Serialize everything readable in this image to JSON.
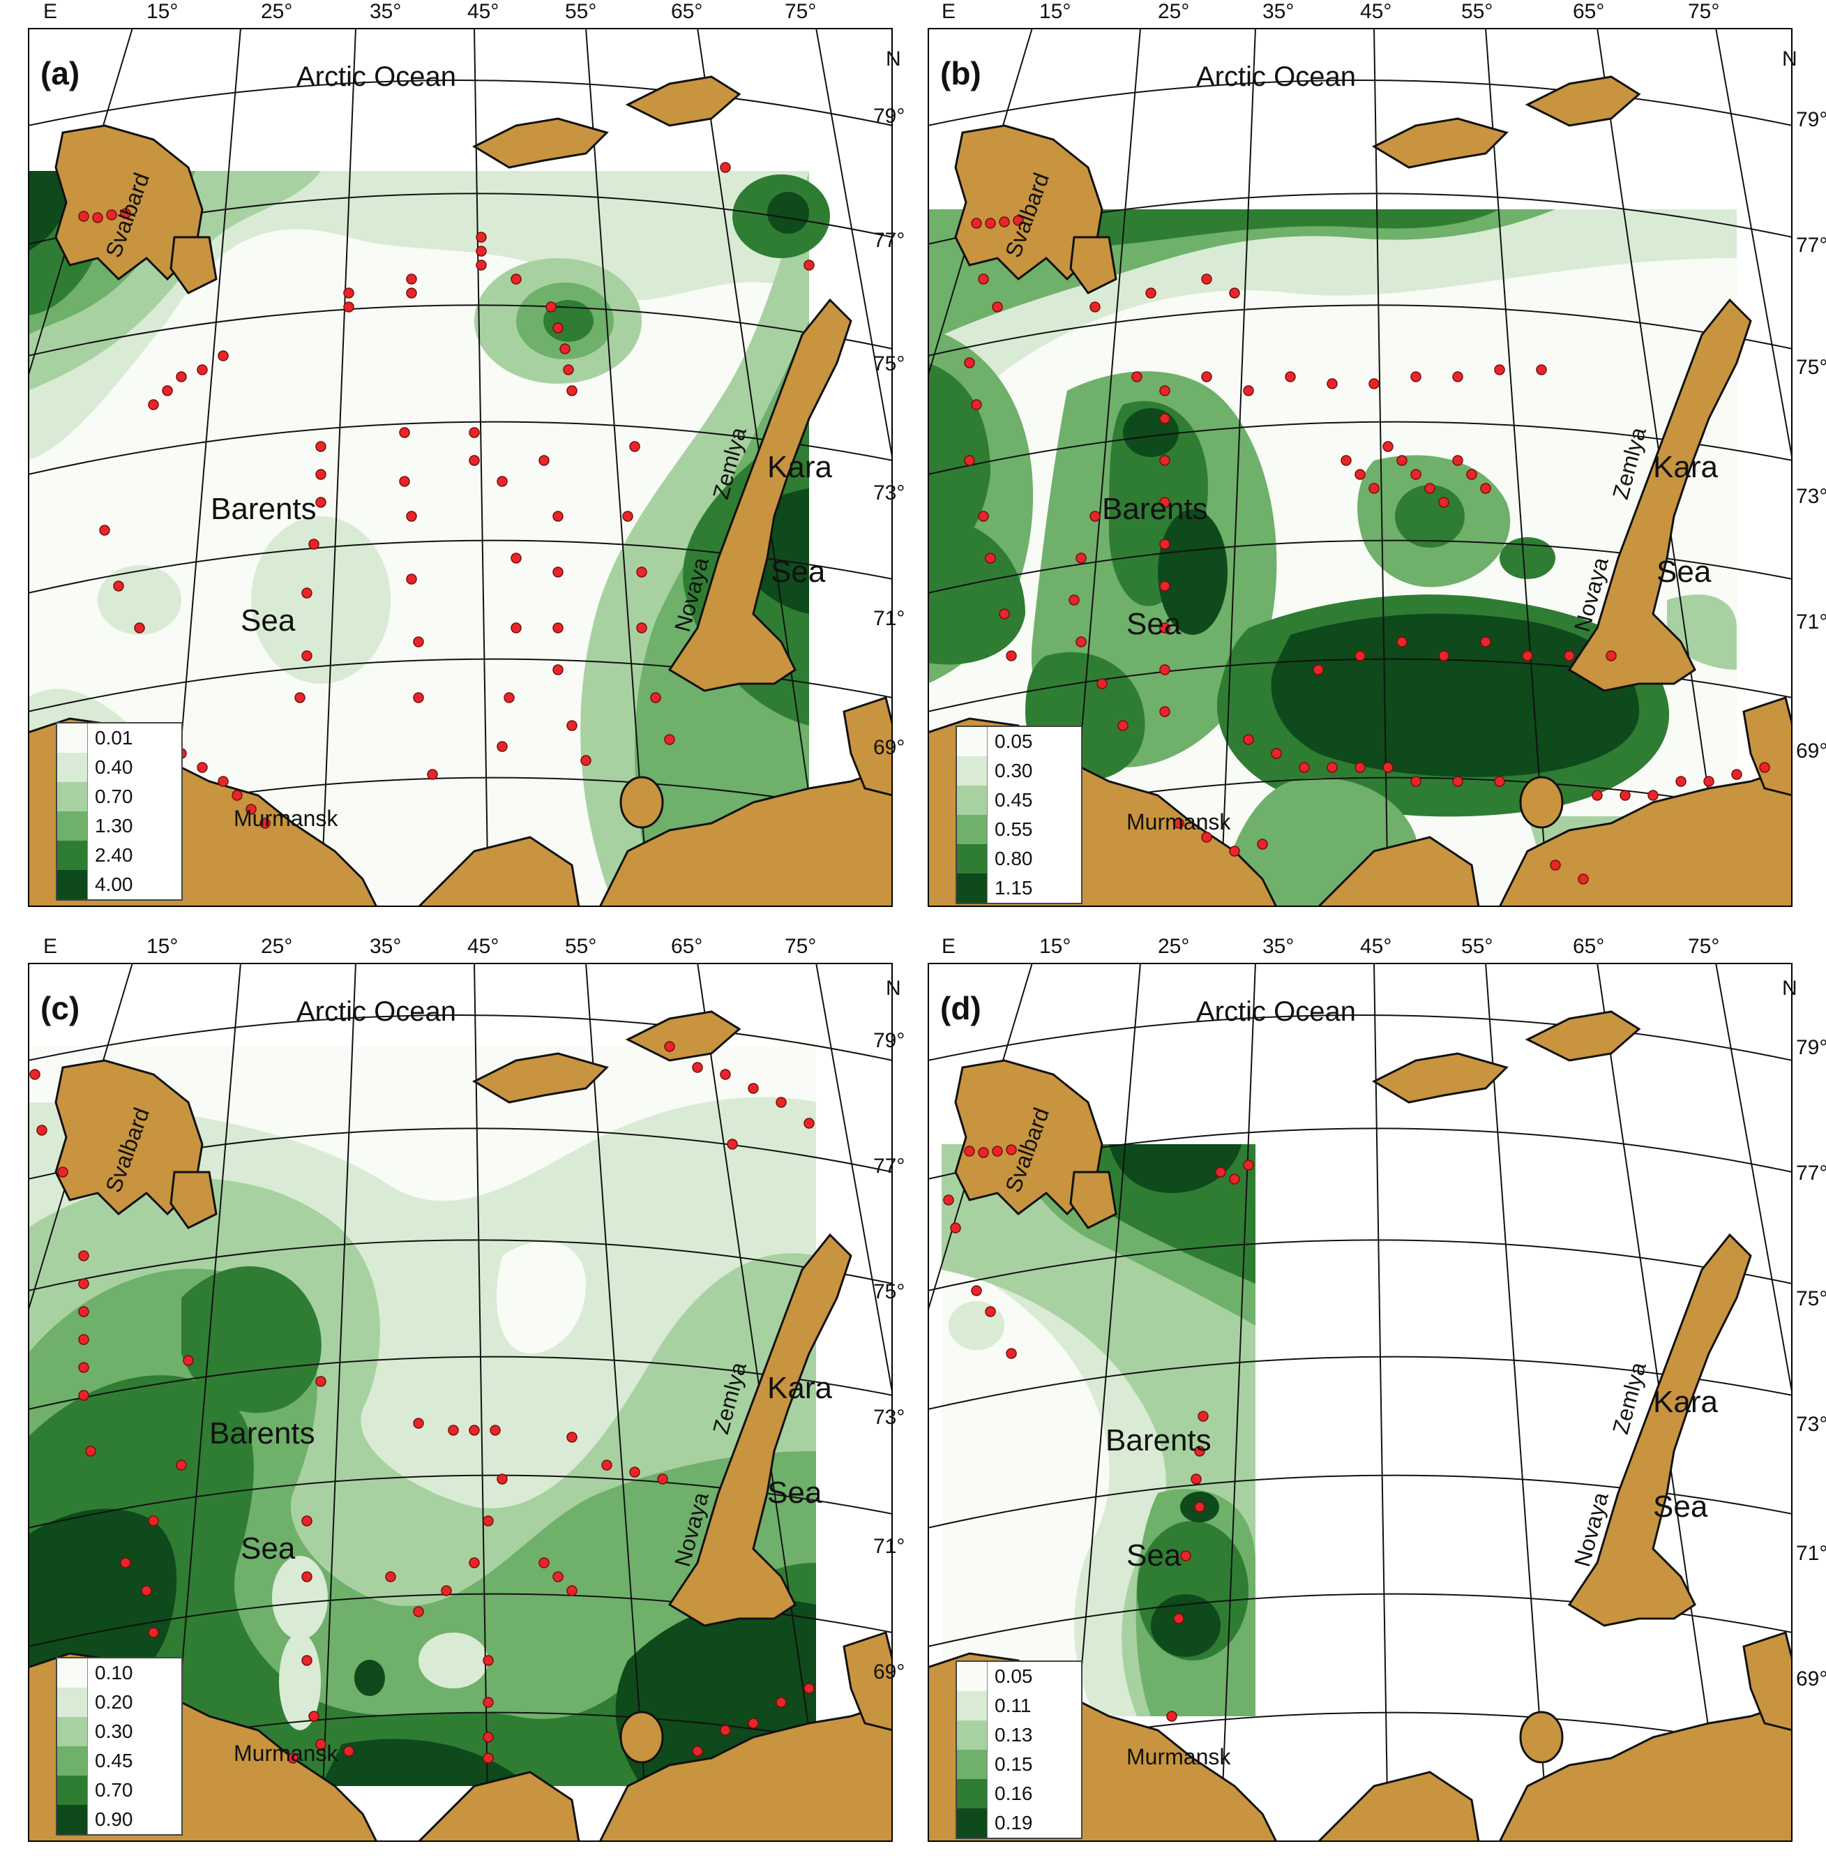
{
  "edge_labels": {
    "corner_e": "E",
    "corner_n": "N",
    "longitudes": [
      "15°",
      "25°",
      "35°",
      "45°",
      "55°",
      "65°",
      "75°"
    ],
    "latitudes": [
      "79°",
      "77°",
      "75°",
      "73°",
      "71°",
      "69°"
    ]
  },
  "places": {
    "ocean": "Arctic Ocean",
    "svalbard": "Svalbard",
    "barents": "Barents",
    "sea": "Sea",
    "kara": "Kara",
    "novaya": "Novaya",
    "zemlya": "Zemlya",
    "murmansk": "Murmansk"
  },
  "panels": [
    {
      "id": "a",
      "letter": "(a)",
      "legend": [
        "0.01",
        "0.40",
        "0.70",
        "1.30",
        "2.40",
        "4.00"
      ]
    },
    {
      "id": "b",
      "letter": "(b)",
      "legend": [
        "0.05",
        "0.30",
        "0.45",
        "0.55",
        "0.80",
        "1.15"
      ]
    },
    {
      "id": "c",
      "letter": "(c)",
      "legend": [
        "0.10",
        "0.20",
        "0.30",
        "0.45",
        "0.70",
        "0.90"
      ]
    },
    {
      "id": "d",
      "letter": "(d)",
      "legend": [
        "0.05",
        "0.11",
        "0.13",
        "0.15",
        "0.16",
        "0.19"
      ]
    }
  ],
  "colors": {
    "land": "#c8943f",
    "station": "#e8262a",
    "levels": [
      "#f8fbf6",
      "#d9ebd4",
      "#a8d1a1",
      "#6fb06a",
      "#2f7d33",
      "#0e4a1b"
    ]
  }
}
